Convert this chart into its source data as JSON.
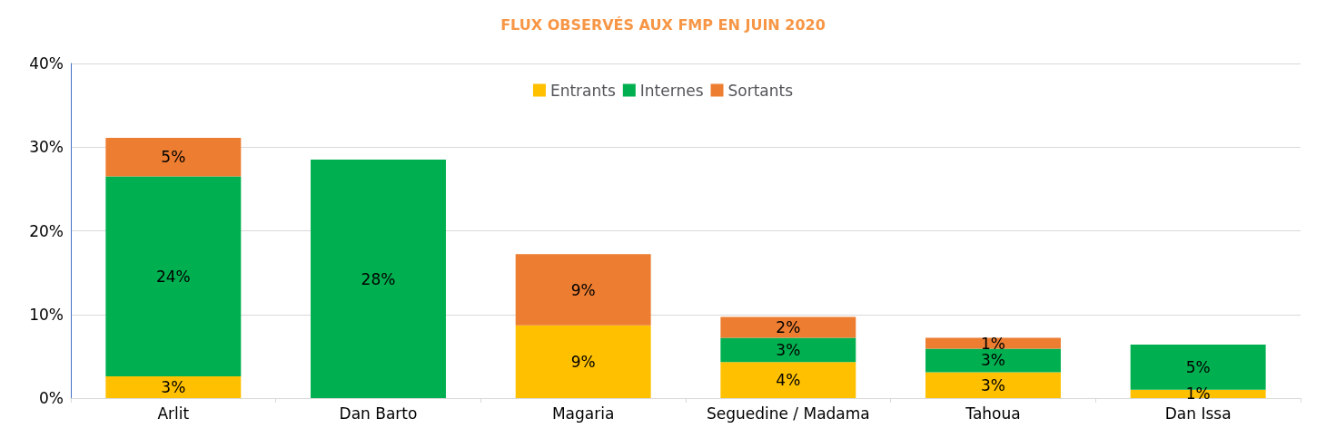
{
  "chart_data": {
    "type": "bar",
    "title": "FLUX OBSERVÉS AUX FMP EN JUIN 2020",
    "stacked": true,
    "categories": [
      "Arlit",
      "Dan Barto",
      "Magaria",
      "Seguedine / Madama",
      "Tahoua",
      "Dan Issa"
    ],
    "series": [
      {
        "name": "Entrants",
        "color": "#ffc000",
        "values": [
          2.6,
          0,
          8.7,
          4.3,
          3.1,
          1.0
        ],
        "value_labels": [
          "3%",
          null,
          "9%",
          "4%",
          "3%",
          "1%"
        ]
      },
      {
        "name": "Internes",
        "color": "#00b050",
        "values": [
          23.9,
          28.5,
          0,
          2.9,
          2.8,
          5.4
        ],
        "value_labels": [
          "24%",
          "28%",
          null,
          "3%",
          "3%",
          "5%"
        ]
      },
      {
        "name": "Sortants",
        "color": "#ed7d31",
        "values": [
          4.6,
          0,
          8.5,
          2.5,
          1.3,
          0
        ],
        "value_labels": [
          "5%",
          null,
          "9%",
          "2%",
          "1%",
          null
        ]
      }
    ],
    "ylim": [
      0,
      40
    ],
    "yticks": [
      {
        "value": 0,
        "label": "0%"
      },
      {
        "value": 10,
        "label": "10%"
      },
      {
        "value": 20,
        "label": "20%"
      },
      {
        "value": 30,
        "label": "30%"
      },
      {
        "value": 40,
        "label": "40%"
      }
    ],
    "grid": "y",
    "legend": "top"
  }
}
